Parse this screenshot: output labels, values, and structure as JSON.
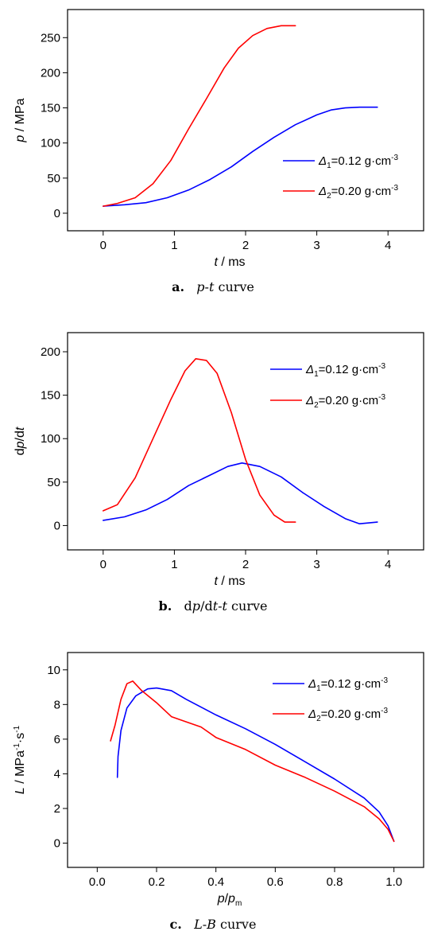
{
  "chart_data": [
    {
      "type": "line",
      "caption": {
        "letter": "a.",
        "text": "p-t curve"
      },
      "xlabel": "t / ms",
      "ylabel": "p / MPa",
      "xlim": [
        -0.5,
        4.5
      ],
      "ylim": [
        -25,
        290
      ],
      "xticks": [
        0,
        1,
        2,
        3,
        4
      ],
      "yticks": [
        0,
        50,
        100,
        150,
        200,
        250
      ],
      "legend_position": "center-right",
      "series": [
        {
          "name": "Δ1=0.12 g·cm-3",
          "color": "#0000ff",
          "x": [
            0,
            0.3,
            0.6,
            0.9,
            1.2,
            1.5,
            1.8,
            2.1,
            2.4,
            2.7,
            3.0,
            3.2,
            3.4,
            3.6,
            3.85
          ],
          "y": [
            10,
            12,
            15,
            22,
            33,
            48,
            66,
            88,
            108,
            126,
            140,
            147,
            150,
            151,
            151
          ]
        },
        {
          "name": "Δ2=0.20 g·cm-3",
          "color": "#ff0000",
          "x": [
            0,
            0.2,
            0.45,
            0.7,
            0.95,
            1.2,
            1.45,
            1.7,
            1.9,
            2.1,
            2.3,
            2.5,
            2.7
          ],
          "y": [
            10,
            14,
            22,
            42,
            75,
            120,
            163,
            207,
            235,
            253,
            263,
            267,
            267
          ]
        }
      ]
    },
    {
      "type": "line",
      "caption": {
        "letter": "b.",
        "text": "dp/dt-t curve"
      },
      "xlabel": "t / ms",
      "ylabel": "dp/dt",
      "xlim": [
        -0.5,
        4.5
      ],
      "ylim": [
        -28,
        222
      ],
      "xticks": [
        0,
        1,
        2,
        3,
        4
      ],
      "yticks": [
        0,
        50,
        100,
        150,
        200
      ],
      "legend_position": "top-right",
      "series": [
        {
          "name": "Δ1=0.12 g·cm-3",
          "color": "#0000ff",
          "x": [
            0,
            0.3,
            0.6,
            0.9,
            1.2,
            1.5,
            1.75,
            1.95,
            2.2,
            2.5,
            2.8,
            3.1,
            3.4,
            3.6,
            3.85
          ],
          "y": [
            6,
            10,
            18,
            30,
            46,
            58,
            68,
            72,
            68,
            56,
            38,
            22,
            8,
            2,
            4
          ]
        },
        {
          "name": "Δ2=0.20 g·cm-3",
          "color": "#ff0000",
          "x": [
            0,
            0.2,
            0.45,
            0.7,
            0.95,
            1.15,
            1.3,
            1.45,
            1.6,
            1.8,
            2.0,
            2.2,
            2.4,
            2.55,
            2.7
          ],
          "y": [
            17,
            24,
            55,
            100,
            145,
            178,
            192,
            190,
            175,
            130,
            76,
            35,
            12,
            4,
            4
          ]
        }
      ]
    },
    {
      "type": "line",
      "caption": {
        "letter": "c.",
        "text": "L-B curve"
      },
      "xlabel": "p/pm",
      "ylabel": "L / MPa-1·s-1",
      "xlim": [
        -0.1,
        1.1
      ],
      "ylim": [
        -1.4,
        11
      ],
      "xticks": [
        0.0,
        0.2,
        0.4,
        0.6,
        0.8,
        1.0
      ],
      "yticks": [
        0,
        2,
        4,
        6,
        8,
        10
      ],
      "legend_position": "top-right",
      "series": [
        {
          "name": "Δ1=0.12 g·cm-3",
          "color": "#0000ff",
          "x": [
            0.068,
            0.07,
            0.08,
            0.1,
            0.13,
            0.17,
            0.2,
            0.25,
            0.3,
            0.4,
            0.5,
            0.6,
            0.7,
            0.8,
            0.9,
            0.95,
            0.98,
            1.0
          ],
          "y": [
            3.8,
            5.0,
            6.5,
            7.8,
            8.5,
            8.9,
            8.95,
            8.8,
            8.3,
            7.4,
            6.6,
            5.7,
            4.7,
            3.7,
            2.6,
            1.8,
            1.0,
            0.1
          ]
        },
        {
          "name": "Δ2=0.20 g·cm-3",
          "color": "#ff0000",
          "x": [
            0.045,
            0.06,
            0.08,
            0.1,
            0.12,
            0.15,
            0.2,
            0.25,
            0.3,
            0.35,
            0.4,
            0.5,
            0.6,
            0.7,
            0.8,
            0.9,
            0.95,
            0.98,
            1.0
          ],
          "y": [
            5.9,
            6.8,
            8.3,
            9.2,
            9.35,
            8.8,
            8.1,
            7.3,
            7.0,
            6.7,
            6.1,
            5.4,
            4.5,
            3.8,
            3.0,
            2.1,
            1.4,
            0.8,
            0.1
          ]
        }
      ]
    }
  ]
}
